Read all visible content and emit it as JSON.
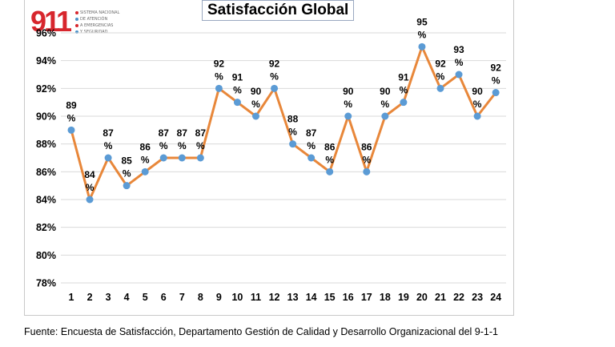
{
  "logo": {
    "number": "911",
    "lines": [
      "SISTEMA NACIONAL",
      "DE ATENCIÓN",
      "A EMERGENCIAS",
      "Y SEGURIDAD"
    ],
    "accent": "#d7262d"
  },
  "chart_data": {
    "type": "line",
    "title": "Satisfacción Global",
    "xlabel": "",
    "ylabel": "",
    "categories": [
      "1",
      "2",
      "3",
      "4",
      "5",
      "6",
      "7",
      "8",
      "9",
      "10",
      "11",
      "12",
      "13",
      "14",
      "15",
      "16",
      "17",
      "18",
      "19",
      "20",
      "21",
      "22",
      "23",
      "24"
    ],
    "series": [
      {
        "values": [
          89,
          84,
          87,
          85,
          86,
          87,
          87,
          87,
          92,
          91,
          90,
          92,
          88,
          87,
          86,
          90,
          86,
          90,
          91,
          95,
          92,
          93,
          90,
          91.7
        ]
      }
    ],
    "data_labels": [
      "89",
      "84",
      "87",
      "85",
      "86",
      "87",
      "87",
      "87",
      "92",
      "91",
      "90",
      "92",
      "88",
      "87",
      "86",
      "90",
      "86",
      "90",
      "91",
      "95",
      "92",
      "93",
      "90",
      "92"
    ],
    "label_suffix": "%",
    "yticks": [
      "78%",
      "80%",
      "82%",
      "84%",
      "86%",
      "88%",
      "90%",
      "92%",
      "94%",
      "96%"
    ],
    "ylim": [
      78,
      96
    ],
    "grid": true,
    "line_color": "#e8873a",
    "marker_color": "#5b9bd5"
  },
  "footer": {
    "source": "Fuente: Encuesta de Satisfacción, Departamento Gestión de Calidad y Desarrollo Organizacional del 9-1-1"
  }
}
